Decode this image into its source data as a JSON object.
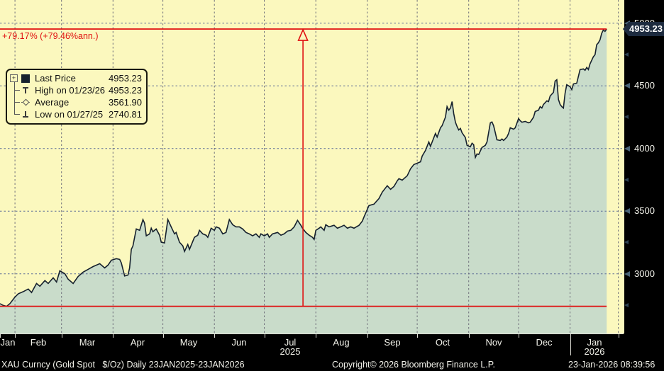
{
  "change_annotation": "+79.17% (+79.46%ann.)",
  "legend": {
    "expander": "+",
    "rows": [
      {
        "icon": "series-swatch",
        "label": "Last Price",
        "value": "4953.23"
      },
      {
        "icon": "high-marker",
        "label": "High on 01/23/26",
        "value": "4953.23"
      },
      {
        "icon": "average-marker",
        "label": "Average",
        "value": "3561.90"
      },
      {
        "icon": "low-marker",
        "label": "Low on 01/27/25",
        "value": "2740.81"
      }
    ]
  },
  "y_axis": {
    "last_price_flag": "4953.23",
    "major_ticks": [
      {
        "value": 5000,
        "label": "5000"
      },
      {
        "value": 4500,
        "label": "4500"
      },
      {
        "value": 4000,
        "label": "4000"
      },
      {
        "value": 3500,
        "label": "3500"
      },
      {
        "value": 3000,
        "label": "3000"
      }
    ],
    "minor_ticks": [
      4750,
      4250,
      3750,
      3250,
      2750
    ]
  },
  "x_axis": {
    "months": [
      {
        "label": "Jan",
        "start_day": 0,
        "end_day": 9
      },
      {
        "label": "Feb",
        "start_day": 9,
        "end_day": 37
      },
      {
        "label": "Mar",
        "start_day": 37,
        "end_day": 68
      },
      {
        "label": "Apr",
        "start_day": 68,
        "end_day": 98
      },
      {
        "label": "May",
        "start_day": 98,
        "end_day": 129
      },
      {
        "label": "Jun",
        "start_day": 129,
        "end_day": 159
      },
      {
        "label": "Jul",
        "start_day": 159,
        "end_day": 190
      },
      {
        "label": "Aug",
        "start_day": 190,
        "end_day": 221
      },
      {
        "label": "Sep",
        "start_day": 221,
        "end_day": 251
      },
      {
        "label": "Oct",
        "start_day": 251,
        "end_day": 282
      },
      {
        "label": "Nov",
        "start_day": 282,
        "end_day": 312
      },
      {
        "label": "Dec",
        "start_day": 312,
        "end_day": 343
      },
      {
        "label": "Jan",
        "start_day": 343,
        "end_day": 372
      }
    ],
    "years": [
      {
        "label": "2025",
        "center_day": 174.5
      },
      {
        "label": "2026",
        "center_day": 357.5
      }
    ],
    "end_tick_day": 372
  },
  "footer": {
    "left": "XAU Curncy (Gold Spot   $/Oz) Daily 23JAN2025-23JAN2026",
    "center": "Copyright© 2026 Bloomberg Finance L.P.",
    "right": "23-Jan-2026 08:39:56"
  },
  "chart_data": {
    "type": "area",
    "title": "XAU Curncy (Gold Spot $/Oz) Daily 23JAN2025-23JAN2026",
    "x_range": [
      "23JAN2025",
      "23JAN2026"
    ],
    "x_unit": "days_since_2025-01-23",
    "xlim_days": [
      0,
      375.6
    ],
    "ylim": [
      2524,
      5185
    ],
    "y_ticks": [
      3000,
      3500,
      4000,
      4500,
      5000
    ],
    "grid": true,
    "legend_position": "top-left",
    "last_price": 4953.23,
    "high_date": "01/23/26",
    "high": 4953.23,
    "average": 3561.9,
    "low_date": "01/27/25",
    "low": 2740.81,
    "change_pct": 79.17,
    "change_pct_annualized": 79.46,
    "reference_lines": {
      "top": 4953.23,
      "bottom": 2740.81
    },
    "event_arrow_day": 182.3,
    "points": [
      [
        0,
        2762
      ],
      [
        2,
        2748
      ],
      [
        4,
        2740.81
      ],
      [
        6,
        2763
      ],
      [
        9,
        2815
      ],
      [
        11,
        2841
      ],
      [
        14,
        2858
      ],
      [
        17,
        2879
      ],
      [
        19,
        2851
      ],
      [
        22,
        2923
      ],
      [
        24,
        2901
      ],
      [
        27,
        2946
      ],
      [
        29,
        2923
      ],
      [
        32,
        2968
      ],
      [
        34,
        2935
      ],
      [
        36,
        3024
      ],
      [
        39,
        3001
      ],
      [
        41,
        2957
      ],
      [
        44,
        2923
      ],
      [
        47,
        2979
      ],
      [
        50,
        3013
      ],
      [
        53,
        3036
      ],
      [
        56,
        3058
      ],
      [
        60,
        3081
      ],
      [
        63,
        3047
      ],
      [
        65,
        3070
      ],
      [
        67,
        3109
      ],
      [
        70,
        3121
      ],
      [
        72,
        3115
      ],
      [
        73,
        3087
      ],
      [
        75,
        2983
      ],
      [
        77,
        2990
      ],
      [
        78,
        3047
      ],
      [
        79,
        3195
      ],
      [
        80,
        3223
      ],
      [
        82,
        3358
      ],
      [
        84,
        3347
      ],
      [
        86,
        3433
      ],
      [
        87,
        3404
      ],
      [
        88,
        3303
      ],
      [
        90,
        3319
      ],
      [
        91,
        3364
      ],
      [
        92,
        3336
      ],
      [
        94,
        3358
      ],
      [
        96,
        3308
      ],
      [
        97,
        3252
      ],
      [
        99,
        3246
      ],
      [
        101,
        3433
      ],
      [
        103,
        3375
      ],
      [
        105,
        3319
      ],
      [
        106,
        3330
      ],
      [
        108,
        3252
      ],
      [
        110,
        3223
      ],
      [
        111,
        3179
      ],
      [
        113,
        3234
      ],
      [
        114,
        3195
      ],
      [
        117,
        3291
      ],
      [
        119,
        3308
      ],
      [
        120,
        3347
      ],
      [
        122,
        3319
      ],
      [
        124,
        3308
      ],
      [
        125,
        3291
      ],
      [
        127,
        3364
      ],
      [
        129,
        3347
      ],
      [
        130,
        3375
      ],
      [
        132,
        3364
      ],
      [
        134,
        3319
      ],
      [
        136,
        3330
      ],
      [
        138,
        3433
      ],
      [
        140,
        3392
      ],
      [
        142,
        3375
      ],
      [
        144,
        3375
      ],
      [
        146,
        3358
      ],
      [
        148,
        3330
      ],
      [
        150,
        3319
      ],
      [
        152,
        3303
      ],
      [
        154,
        3319
      ],
      [
        156,
        3291
      ],
      [
        157,
        3319
      ],
      [
        159,
        3303
      ],
      [
        161,
        3319
      ],
      [
        162,
        3291
      ],
      [
        164,
        3319
      ],
      [
        167,
        3330
      ],
      [
        169,
        3308
      ],
      [
        171,
        3319
      ],
      [
        173,
        3341
      ],
      [
        175,
        3347
      ],
      [
        177,
        3375
      ],
      [
        179,
        3427
      ],
      [
        181,
        3387
      ],
      [
        182,
        3364
      ],
      [
        184,
        3330
      ],
      [
        186,
        3308
      ],
      [
        188,
        3291
      ],
      [
        189,
        3275
      ],
      [
        190,
        3347
      ],
      [
        192,
        3364
      ],
      [
        193,
        3375
      ],
      [
        195,
        3347
      ],
      [
        196,
        3392
      ],
      [
        198,
        3375
      ],
      [
        201,
        3387
      ],
      [
        203,
        3364
      ],
      [
        205,
        3375
      ],
      [
        207,
        3387
      ],
      [
        209,
        3364
      ],
      [
        211,
        3375
      ],
      [
        213,
        3364
      ],
      [
        216,
        3387
      ],
      [
        218,
        3421
      ],
      [
        219,
        3454
      ],
      [
        222,
        3545
      ],
      [
        225,
        3556
      ],
      [
        228,
        3601
      ],
      [
        230,
        3652
      ],
      [
        233,
        3703
      ],
      [
        235,
        3674
      ],
      [
        237,
        3697
      ],
      [
        239,
        3742
      ],
      [
        240,
        3759
      ],
      [
        242,
        3748
      ],
      [
        245,
        3782
      ],
      [
        247,
        3838
      ],
      [
        249,
        3872
      ],
      [
        251,
        3883
      ],
      [
        253,
        3894
      ],
      [
        254,
        3939
      ],
      [
        256,
        3985
      ],
      [
        258,
        4052
      ],
      [
        259,
        4018
      ],
      [
        260,
        4052
      ],
      [
        262,
        4120
      ],
      [
        263,
        4092
      ],
      [
        265,
        4165
      ],
      [
        266,
        4182
      ],
      [
        268,
        4250
      ],
      [
        269,
        4334
      ],
      [
        270,
        4306
      ],
      [
        271,
        4323
      ],
      [
        272,
        4374
      ],
      [
        273,
        4278
      ],
      [
        274,
        4210
      ],
      [
        275,
        4176
      ],
      [
        276,
        4148
      ],
      [
        277,
        4160
      ],
      [
        278,
        4126
      ],
      [
        280,
        4087
      ],
      [
        281,
        4025
      ],
      [
        283,
        4014
      ],
      [
        284,
        4042
      ],
      [
        285,
        4031
      ],
      [
        286,
        3929
      ],
      [
        287,
        3957
      ],
      [
        288,
        3952
      ],
      [
        290,
        4008
      ],
      [
        292,
        4025
      ],
      [
        293,
        4052
      ],
      [
        295,
        4205
      ],
      [
        296,
        4212
      ],
      [
        297,
        4182
      ],
      [
        298,
        4126
      ],
      [
        299,
        4070
      ],
      [
        301,
        4064
      ],
      [
        302,
        4076
      ],
      [
        303,
        4064
      ],
      [
        305,
        4092
      ],
      [
        306,
        4120
      ],
      [
        307,
        4165
      ],
      [
        309,
        4154
      ],
      [
        310,
        4165
      ],
      [
        312,
        4239
      ],
      [
        313,
        4222
      ],
      [
        314,
        4210
      ],
      [
        316,
        4216
      ],
      [
        318,
        4205
      ],
      [
        319,
        4210
      ],
      [
        321,
        4250
      ],
      [
        322,
        4295
      ],
      [
        324,
        4306
      ],
      [
        325,
        4334
      ],
      [
        326,
        4323
      ],
      [
        327,
        4351
      ],
      [
        329,
        4380
      ],
      [
        330,
        4374
      ],
      [
        331,
        4419
      ],
      [
        333,
        4448
      ],
      [
        334,
        4538
      ],
      [
        335,
        4549
      ],
      [
        336,
        4391
      ],
      [
        337,
        4351
      ],
      [
        338,
        4334
      ],
      [
        339,
        4323
      ],
      [
        340,
        4442
      ],
      [
        341,
        4509
      ],
      [
        343,
        4493
      ],
      [
        344,
        4470
      ],
      [
        345,
        4515
      ],
      [
        347,
        4521
      ],
      [
        348,
        4574
      ],
      [
        349,
        4630
      ],
      [
        351,
        4635
      ],
      [
        352,
        4624
      ],
      [
        353,
        4647
      ],
      [
        354,
        4630
      ],
      [
        355,
        4675
      ],
      [
        357,
        4732
      ],
      [
        358,
        4749
      ],
      [
        359,
        4828
      ],
      [
        360,
        4844
      ],
      [
        361,
        4867
      ],
      [
        362,
        4918
      ],
      [
        363,
        4946
      ],
      [
        364,
        4935
      ],
      [
        365,
        4953.23
      ]
    ]
  },
  "colors": {
    "bg_yellow": "#fbf8be",
    "area_fill": "#c9dcca",
    "line_color": "#16212e",
    "red": "#e01010",
    "grid_h": "#5c6c96",
    "grid_v": "#6e6e7a",
    "flag_bg": "#1d2b3f",
    "axis_text": "#f2f2ea",
    "panel_black": "#000000",
    "tick_major": "#4a6478",
    "tick_minor": "#2e4354",
    "legend_border": "#1a1a10",
    "text_dark": "#111111",
    "axis_line": "#dcdcd4",
    "footer_text": "#f2f2ea",
    "glyph_gray": "#555555"
  }
}
